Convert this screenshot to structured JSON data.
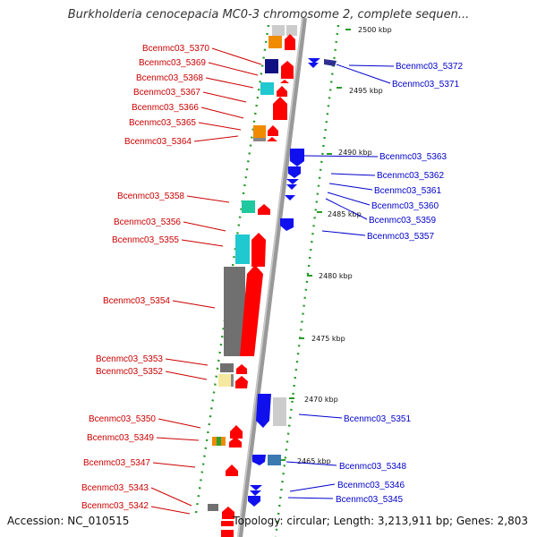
{
  "title": "Burkholderia cenocepacia MC0-3 chromosome 2, complete sequen...",
  "footer": {
    "accession": "Accession: NC_010515",
    "summary": "Topology: circular; Length: 3,213,911 bp; Genes: 2,803"
  },
  "scale": {
    "unit": "kbp",
    "ticks": [
      "2500 kbp",
      "2495 kbp",
      "2490 kbp",
      "2485 kbp",
      "2480 kbp",
      "2475 kbp",
      "2470 kbp",
      "2465 kbp"
    ]
  },
  "colors": {
    "forward_label": "#cc0000",
    "reverse_label": "#0000cc",
    "forward_gene": "#ff0000",
    "reverse_gene": "#1010ee",
    "backbone": "#888888",
    "ring": "#2a9a2a"
  },
  "left_labels": [
    "Bcenmc03_5370",
    "Bcenmc03_5369",
    "Bcenmc03_5368",
    "Bcenmc03_5367",
    "Bcenmc03_5366",
    "Bcenmc03_5365",
    "Bcenmc03_5364",
    "Bcenmc03_5358",
    "Bcenmc03_5356",
    "Bcenmc03_5355",
    "Bcenmc03_5354",
    "Bcenmc03_5353",
    "Bcenmc03_5352",
    "Bcenmc03_5350",
    "Bcenmc03_5349",
    "Bcenmc03_5347",
    "Bcenmc03_5343",
    "Bcenmc03_5342"
  ],
  "right_labels": [
    "Bcenmc03_5372",
    "Bcenmc03_5371",
    "Bcenmc03_5363",
    "Bcenmc03_5362",
    "Bcenmc03_5361",
    "Bcenmc03_5360",
    "Bcenmc03_5359",
    "Bcenmc03_5357",
    "Bcenmc03_5351",
    "Bcenmc03_5348",
    "Bcenmc03_5346",
    "Bcenmc03_5345"
  ]
}
